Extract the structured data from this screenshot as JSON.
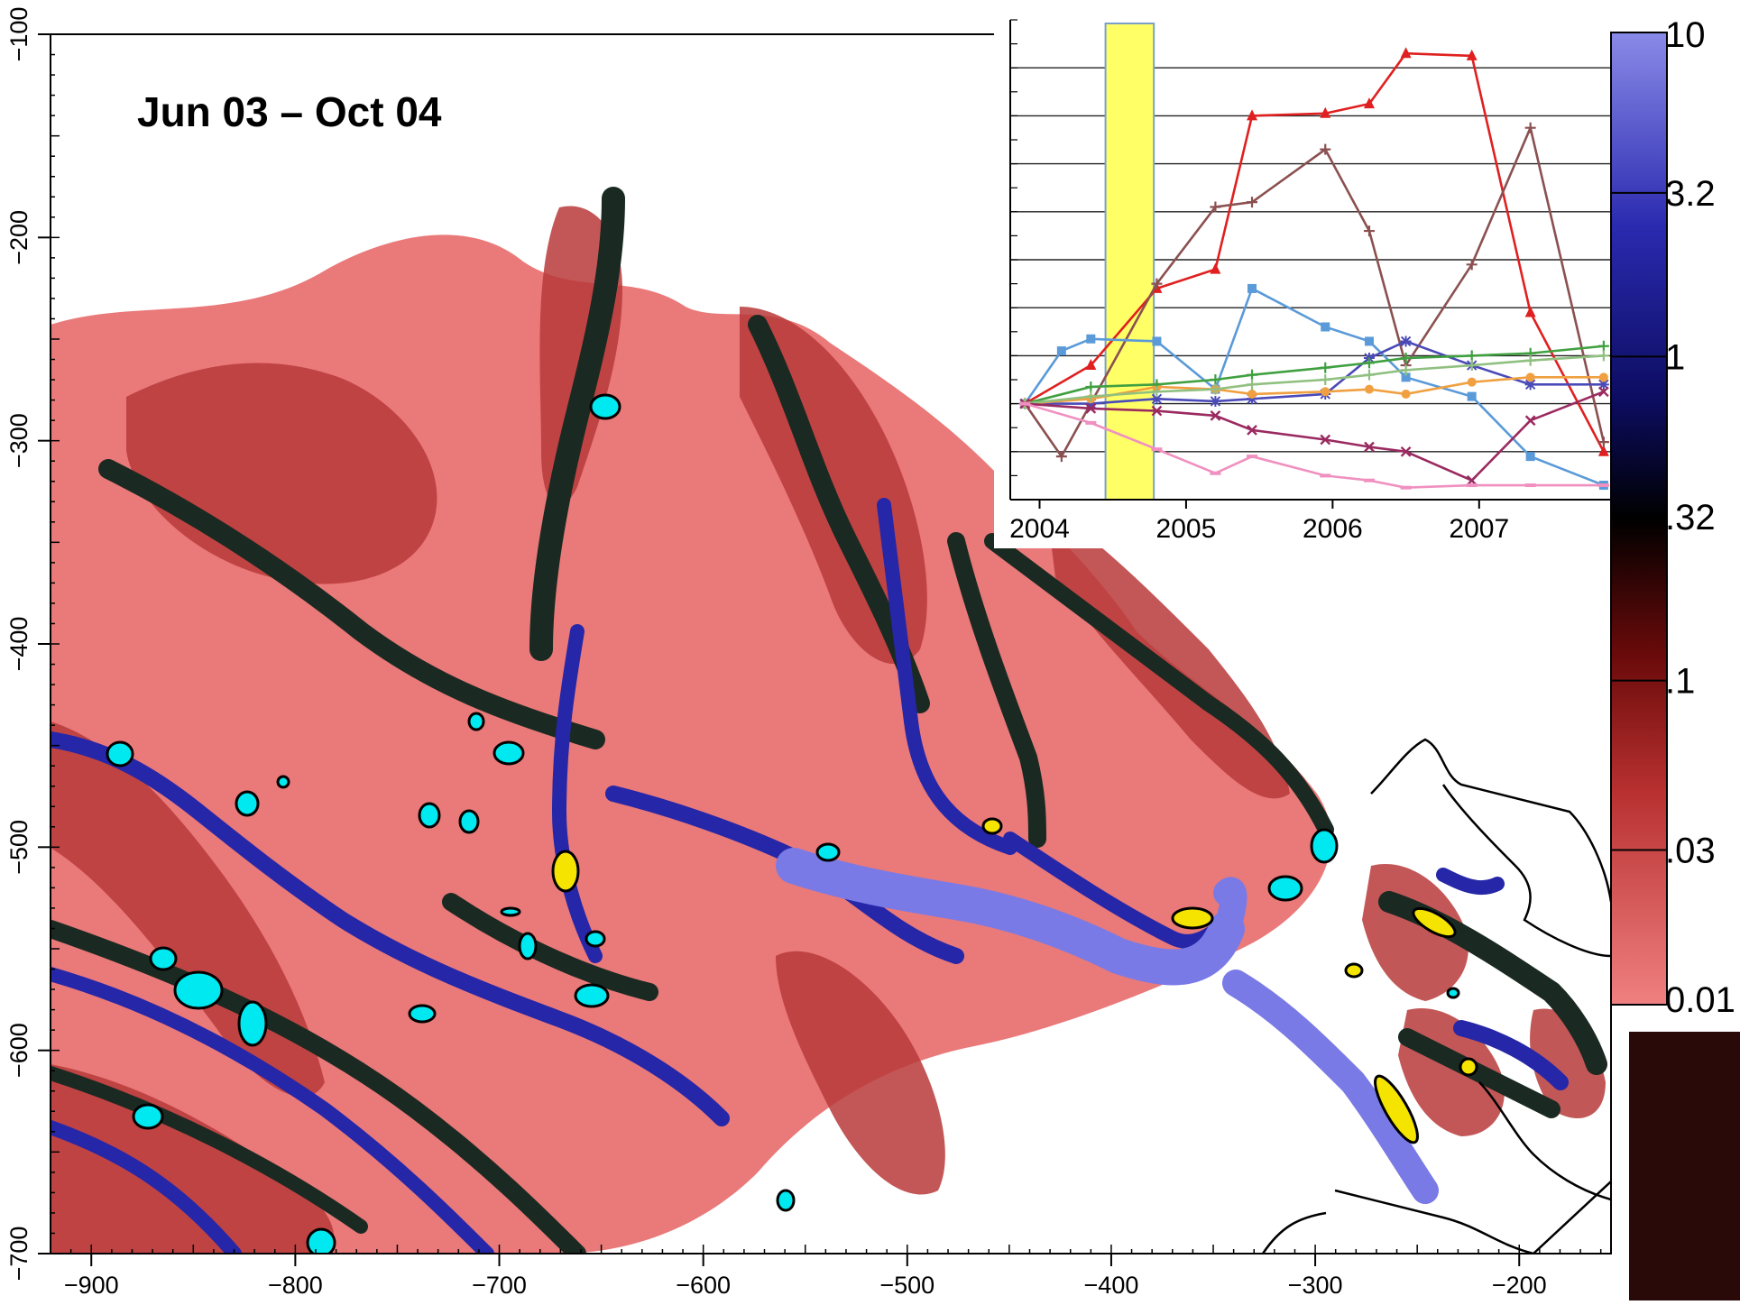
{
  "map": {
    "title": "Jun 03 – Oct 04",
    "x_axis": {
      "ticks": [
        -900,
        -800,
        -700,
        -600,
        -500,
        -400,
        -300,
        -200
      ],
      "range": [
        -920,
        -155
      ]
    },
    "y_axis": {
      "ticks": [
        -100,
        -200,
        -300,
        -400,
        -500,
        -600,
        -700
      ],
      "range": [
        -700,
        -100
      ]
    },
    "colors": {
      "low": "#f08080",
      "mid_red": "#b03030",
      "dark": "#1a0a0a",
      "channel_green": "#2f4a3a",
      "channel_blue": "#2a2aa0",
      "channel_lightblue": "#7a7ae6",
      "cyan_patch": "#00e8f0",
      "yellow_patch": "#f5e400",
      "boundary": "#000000"
    }
  },
  "colorbar": {
    "labels": [
      "10",
      "3.2",
      "1",
      ".32",
      ".1",
      ".03",
      "0.01"
    ],
    "values": [
      10,
      3.2,
      1,
      0.32,
      0.1,
      0.03,
      0.01
    ],
    "scale": "log",
    "stops": [
      "#f08080",
      "#7a1010",
      "#000000",
      "#10106a",
      "#8a8ae8"
    ]
  },
  "chart_data": {
    "type": "line",
    "x_axis": {
      "ticks": [
        "2004",
        "2005",
        "2006",
        "2007"
      ],
      "range": [
        2003.8,
        2007.9
      ]
    },
    "y_axis": {
      "gridlines": 9
    },
    "highlight": {
      "from": 2004.45,
      "to": 2004.78,
      "color": "#ffff66"
    },
    "series": [
      {
        "color": "#e02020",
        "marker": "triangle",
        "x": [
          2003.9,
          2004.35,
          2004.8,
          2005.2,
          2005.45,
          2005.95,
          2006.25,
          2006.5,
          2006.95,
          2007.35,
          2007.85
        ],
        "y": [
          0.0,
          0.8,
          2.4,
          2.8,
          6.0,
          6.05,
          6.25,
          7.3,
          7.25,
          1.9,
          -1.0
        ]
      },
      {
        "color": "#8b5050",
        "marker": "plus",
        "x": [
          2003.9,
          2004.15,
          2004.8,
          2005.2,
          2005.45,
          2005.95,
          2006.25,
          2006.5,
          2006.95,
          2007.35,
          2007.85
        ],
        "y": [
          0.0,
          -1.1,
          2.5,
          4.1,
          4.2,
          5.3,
          3.6,
          0.8,
          2.9,
          5.75,
          -0.8
        ]
      },
      {
        "color": "#5a9ad8",
        "marker": "square",
        "x": [
          2003.9,
          2004.15,
          2004.35,
          2004.8,
          2005.2,
          2005.45,
          2005.95,
          2006.25,
          2006.5,
          2006.95,
          2007.35,
          2007.85
        ],
        "y": [
          0.0,
          1.1,
          1.35,
          1.3,
          0.3,
          2.4,
          1.6,
          1.3,
          0.55,
          0.15,
          -1.1,
          -1.7
        ]
      },
      {
        "color": "#4a4ab8",
        "marker": "star",
        "x": [
          2003.9,
          2004.35,
          2004.8,
          2005.2,
          2005.45,
          2005.95,
          2006.25,
          2006.5,
          2006.95,
          2007.35,
          2007.85
        ],
        "y": [
          0.0,
          0.0,
          0.1,
          0.05,
          0.1,
          0.2,
          0.95,
          1.3,
          0.8,
          0.4,
          0.4
        ]
      },
      {
        "color": "#f0a040",
        "marker": "circle",
        "x": [
          2003.9,
          2004.35,
          2004.8,
          2005.2,
          2005.45,
          2005.95,
          2006.25,
          2006.5,
          2006.95,
          2007.35,
          2007.85
        ],
        "y": [
          0.0,
          0.1,
          0.35,
          0.3,
          0.2,
          0.25,
          0.3,
          0.2,
          0.45,
          0.55,
          0.55
        ]
      },
      {
        "color": "#40a040",
        "marker": "plus",
        "x": [
          2003.9,
          2004.35,
          2004.8,
          2005.2,
          2005.45,
          2005.95,
          2006.25,
          2006.5,
          2006.95,
          2007.35,
          2007.85
        ],
        "y": [
          0.0,
          0.35,
          0.4,
          0.5,
          0.6,
          0.75,
          0.85,
          0.95,
          1.0,
          1.05,
          1.2
        ]
      },
      {
        "color": "#90c080",
        "marker": "plus",
        "x": [
          2003.9,
          2004.35,
          2004.8,
          2005.2,
          2005.45,
          2005.95,
          2006.25,
          2006.5,
          2006.95,
          2007.35,
          2007.85
        ],
        "y": [
          0.0,
          0.15,
          0.25,
          0.3,
          0.4,
          0.5,
          0.6,
          0.7,
          0.8,
          0.9,
          1.0
        ]
      },
      {
        "color": "#9a2a60",
        "marker": "x",
        "x": [
          2003.9,
          2004.35,
          2004.8,
          2005.2,
          2005.45,
          2005.95,
          2006.25,
          2006.5,
          2006.95,
          2007.35,
          2007.85
        ],
        "y": [
          0.0,
          -0.1,
          -0.15,
          -0.25,
          -0.55,
          -0.75,
          -0.9,
          -1.0,
          -1.6,
          -0.35,
          0.25
        ]
      },
      {
        "color": "#f090c0",
        "marker": "dash",
        "x": [
          2003.9,
          2004.35,
          2004.8,
          2005.2,
          2005.45,
          2005.95,
          2006.25,
          2006.5,
          2006.95,
          2007.35,
          2007.85
        ],
        "y": [
          0.0,
          -0.4,
          -0.95,
          -1.45,
          -1.1,
          -1.5,
          -1.6,
          -1.75,
          -1.7,
          -1.7,
          -1.7
        ]
      }
    ]
  }
}
